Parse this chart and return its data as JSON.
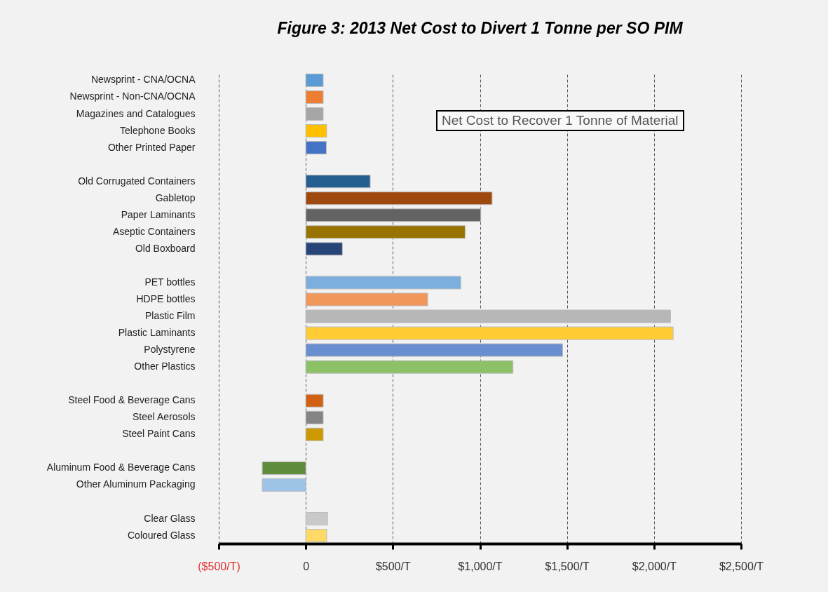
{
  "chart_data": {
    "type": "bar",
    "orientation": "horizontal",
    "title": "Figure 3:  2013 Net Cost to Divert 1 Tonne per SO PIM",
    "categories": [
      "Newsprint - CNA/OCNA",
      "Newsprint - Non-CNA/OCNA",
      "Magazines and Catalogues",
      "Telephone Books",
      "Other Printed Paper",
      null,
      "Old Corrugated Containers",
      "Gabletop",
      "Paper Laminants",
      "Aseptic Containers",
      "Old Boxboard",
      null,
      "PET bottles",
      "HDPE bottles",
      "Plastic Film",
      "Plastic Laminants",
      "Polystyrene",
      "Other Plastics",
      null,
      "Steel Food & Beverage Cans",
      "Steel Aerosols",
      "Steel Paint Cans",
      null,
      "Aluminum Food & Beverage Cans",
      "Other Aluminum Packaging",
      null,
      "Clear Glass",
      "Coloured Glass"
    ],
    "values": [
      100,
      100,
      100,
      120,
      118,
      null,
      370,
      1070,
      1005,
      915,
      210,
      null,
      890,
      700,
      2095,
      2110,
      1475,
      1190,
      null,
      100,
      100,
      100,
      null,
      -250,
      -250,
      null,
      125,
      120
    ],
    "colors": [
      "#5b9bd5",
      "#ed7d31",
      "#a5a5a5",
      "#ffc000",
      "#4472c4",
      null,
      "#255e91",
      "#9e480e",
      "#636363",
      "#997300",
      "#264478",
      null,
      "#7cafdd",
      "#f1975a",
      "#b7b7b7",
      "#ffcd33",
      "#698ed0",
      "#8cc168",
      null,
      "#d26012",
      "#848484",
      "#cc9a00",
      null,
      "#5f8b3c",
      "#9dc3e6",
      null,
      "#c9c9c9",
      "#ffd966"
    ],
    "xlim": [
      -500,
      2500
    ],
    "xticks": [
      {
        "value": -500,
        "label": "($500/T)"
      },
      0,
      {
        "value": 500,
        "label": "$500/T"
      },
      {
        "value": 1000,
        "label": "$1,000/T"
      },
      {
        "value": 1500,
        "label": "$1,500/T"
      },
      {
        "value": 2000,
        "label": "$2,000/T"
      },
      {
        "value": 2500,
        "label": "$2,500/T"
      }
    ],
    "grid": "x",
    "annotations": [
      "Net Cost to Recover 1 Tonne of Material"
    ]
  }
}
